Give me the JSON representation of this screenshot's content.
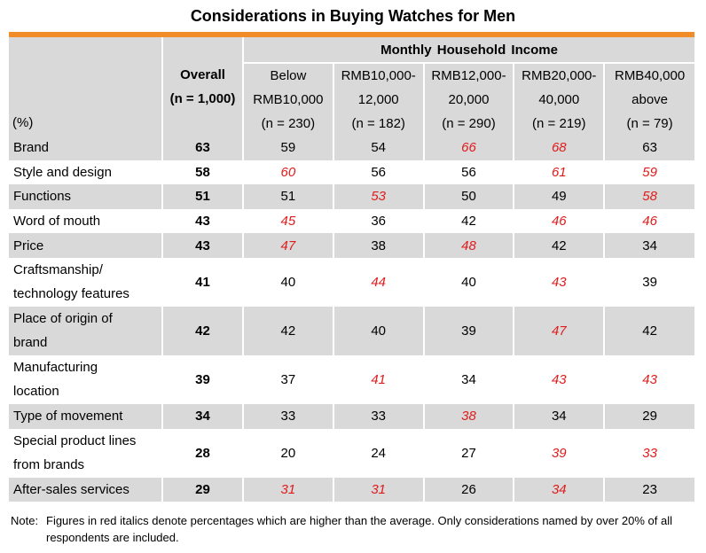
{
  "title": "Considerations in Buying Watches for Men",
  "colors": {
    "accent_bar": "#f28c28",
    "shade": "#d9d9d9",
    "highlight": "#e01b1b"
  },
  "header": {
    "unit": "(%)",
    "overall": [
      "Overall",
      "(n = 1,000)"
    ],
    "group": "Monthly Household Income",
    "columns": [
      [
        "Below",
        "RMB10,000",
        "(n = 230)"
      ],
      [
        "RMB10,000-",
        "12,000",
        "(n = 182)"
      ],
      [
        "RMB12,000-",
        "20,000",
        "(n = 290)"
      ],
      [
        "RMB20,000-",
        "40,000",
        "(n = 219)"
      ],
      [
        "RMB40,000",
        "above",
        "(n = 79)"
      ]
    ]
  },
  "chart_data": {
    "type": "table",
    "title": "Considerations in Buying Watches for Men",
    "rows": [
      {
        "label": [
          "Brand"
        ],
        "overall": 63,
        "values": [
          59,
          54,
          66,
          68,
          63
        ],
        "highlight": [
          false,
          false,
          true,
          true,
          false
        ]
      },
      {
        "label": [
          "Style and design"
        ],
        "overall": 58,
        "values": [
          60,
          56,
          56,
          61,
          59
        ],
        "highlight": [
          true,
          false,
          false,
          true,
          true
        ]
      },
      {
        "label": [
          "Functions"
        ],
        "overall": 51,
        "values": [
          51,
          53,
          50,
          49,
          58
        ],
        "highlight": [
          false,
          true,
          false,
          false,
          true
        ]
      },
      {
        "label": [
          "Word of mouth"
        ],
        "overall": 43,
        "values": [
          45,
          36,
          42,
          46,
          46
        ],
        "highlight": [
          true,
          false,
          false,
          true,
          true
        ]
      },
      {
        "label": [
          "Price"
        ],
        "overall": 43,
        "values": [
          47,
          38,
          48,
          42,
          34
        ],
        "highlight": [
          true,
          false,
          true,
          false,
          false
        ]
      },
      {
        "label": [
          "Craftsmanship/",
          "technology features"
        ],
        "overall": 41,
        "values": [
          40,
          44,
          40,
          43,
          39
        ],
        "highlight": [
          false,
          true,
          false,
          true,
          false
        ]
      },
      {
        "label": [
          "Place of origin of",
          "brand"
        ],
        "overall": 42,
        "values": [
          42,
          40,
          39,
          47,
          42
        ],
        "highlight": [
          false,
          false,
          false,
          true,
          false
        ]
      },
      {
        "label": [
          "Manufacturing",
          "location"
        ],
        "overall": 39,
        "values": [
          37,
          41,
          34,
          43,
          43
        ],
        "highlight": [
          false,
          true,
          false,
          true,
          true
        ]
      },
      {
        "label": [
          "Type of movement"
        ],
        "overall": 34,
        "values": [
          33,
          33,
          38,
          34,
          29
        ],
        "highlight": [
          false,
          false,
          true,
          false,
          false
        ]
      },
      {
        "label": [
          "Special product lines",
          "from brands"
        ],
        "overall": 28,
        "values": [
          20,
          24,
          27,
          39,
          33
        ],
        "highlight": [
          false,
          false,
          false,
          true,
          true
        ]
      },
      {
        "label": [
          "After-sales services"
        ],
        "overall": 29,
        "values": [
          31,
          31,
          26,
          34,
          23
        ],
        "highlight": [
          true,
          true,
          false,
          true,
          false
        ]
      }
    ]
  },
  "note": {
    "label": "Note:",
    "text": "Figures in red italics denote percentages which are higher than the average. Only considerations named by over 20% of all respondents are included."
  }
}
